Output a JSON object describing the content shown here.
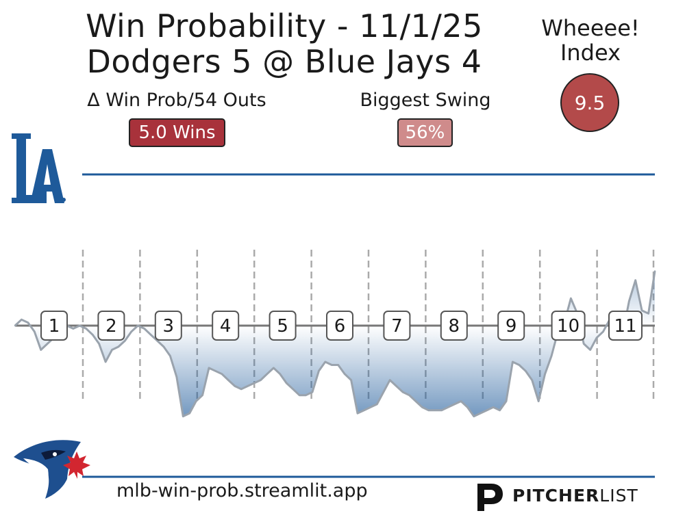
{
  "header": {
    "title_line1": "Win Probability - 11/1/25",
    "title_line2": "Dodgers 5 @ Blue Jays 4"
  },
  "wheeee": {
    "label_line1": "Wheeee!",
    "label_line2": "Index",
    "value": "9.5",
    "color": "#b34a4a"
  },
  "stats": {
    "delta_label": "Δ Win Prob/54 Outs",
    "delta_value": "5.0 Wins",
    "delta_color": "#a8323b",
    "swing_label": "Biggest Swing",
    "swing_value": "56%",
    "swing_color": "#cf8b8b"
  },
  "footer": {
    "url": "mlb-win-prob.streamlit.app",
    "brand_bold": "PITCHER",
    "brand_light": "LIST"
  },
  "logos": {
    "top_team": "dodgers-la-logo",
    "bottom_team": "blue-jays-logo"
  },
  "chart_data": {
    "type": "area",
    "y_meaning": "Dodgers win probability (top = Dodgers 100%, bottom = Blue Jays)",
    "ylim": [
      0,
      100
    ],
    "x_unit": "plate appearance index",
    "xlim": [
      0,
      99
    ],
    "innings": [
      "1",
      "2",
      "3",
      "4",
      "5",
      "6",
      "7",
      "8",
      "9",
      "10",
      "11"
    ],
    "inning_boundaries": [
      0,
      10,
      20,
      30,
      40,
      50,
      60,
      70,
      80,
      90,
      100
    ],
    "midline": 50,
    "top_color": "#1e5a9a",
    "bottom_color": "#1e5a9a",
    "series": [
      {
        "values": [
          50,
          52,
          51,
          48,
          42,
          44,
          46,
          48,
          50,
          49,
          50,
          49,
          47,
          44,
          38,
          42,
          43,
          45,
          48,
          50,
          49,
          47,
          45,
          43,
          40,
          33,
          20,
          21,
          25,
          27,
          36,
          35,
          34,
          32,
          30,
          29,
          30,
          31,
          32,
          34,
          36,
          34,
          31,
          29,
          27,
          27,
          28,
          35,
          38,
          37,
          37,
          34,
          32,
          21,
          22,
          23,
          24,
          28,
          32,
          30,
          28,
          27,
          25,
          23,
          22,
          22,
          22,
          23,
          24,
          25,
          23,
          20,
          21,
          22,
          23,
          22,
          25,
          38,
          37,
          35,
          32,
          25,
          34,
          40,
          48,
          51,
          59,
          54,
          44,
          42,
          46,
          48,
          52,
          50,
          47,
          58,
          65,
          55,
          54,
          68
        ]
      }
    ]
  }
}
